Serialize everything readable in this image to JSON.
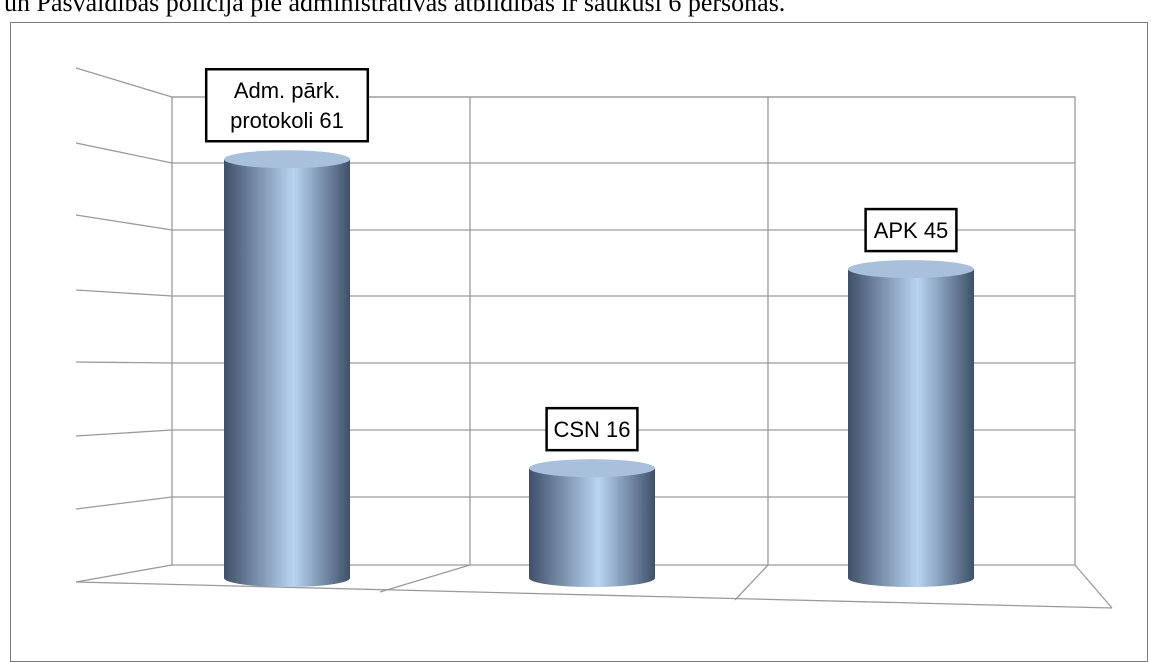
{
  "caption": "un Pašvaldības policija pie administratīvās atbildības ir saukusi 6 personas.",
  "colors": {
    "bar_dark": "#3e5069",
    "bar_light": "#b8d4f2",
    "bar_top": "#a9c0dc",
    "grid": "#9a9a9a"
  },
  "chart_data": {
    "type": "bar",
    "style": "3d-cylinder",
    "categories": [
      "Adm. pārk. protokoli",
      "CSN",
      "APK"
    ],
    "values": [
      61,
      16,
      45
    ],
    "data_labels": [
      [
        "Adm. pārk.",
        "protokoli 61"
      ],
      [
        "CSN 16"
      ],
      [
        "APK 45"
      ]
    ],
    "title": "",
    "xlabel": "",
    "ylabel": "",
    "ylim": [
      0,
      70
    ],
    "grid": true,
    "legend": "none"
  }
}
